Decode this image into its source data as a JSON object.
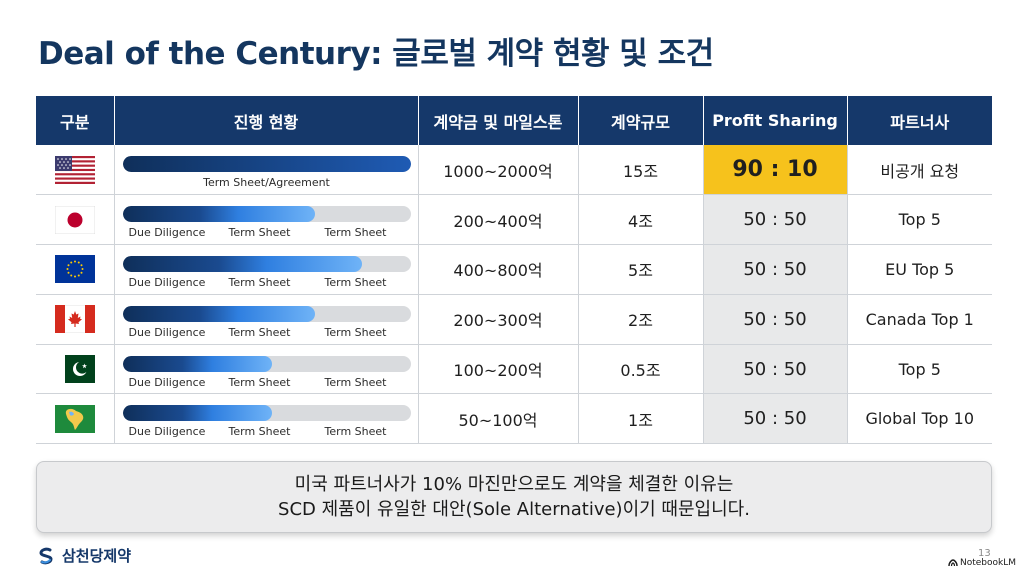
{
  "title": "Deal of the Century: 글로벌 계약 현황 및 조건",
  "table": {
    "headers": [
      "구분",
      "진행 현황",
      "계약금 및 마일스톤",
      "계약규모",
      "Profit Sharing",
      "파트너사"
    ],
    "rows": [
      {
        "flag": "usa-flag-icon",
        "stages": [
          "Term Sheet/Agreement"
        ],
        "progress": 1.0,
        "amount": "1000~2000억",
        "scale": "15조",
        "profit_sharing": "90 : 10",
        "partner": "비공개 요청",
        "highlight": true
      },
      {
        "flag": "japan-flag-icon",
        "stages": [
          "Due Diligence",
          "Term Sheet",
          "Term Sheet"
        ],
        "progress": 0.67,
        "amount": "200~400억",
        "scale": "4조",
        "profit_sharing": "50 : 50",
        "partner": "Top 5"
      },
      {
        "flag": "eu-flag-icon",
        "stages": [
          "Due Diligence",
          "Term Sheet",
          "Term Sheet"
        ],
        "progress": 0.83,
        "amount": "400~800억",
        "scale": "5조",
        "profit_sharing": "50 : 50",
        "partner": "EU Top 5"
      },
      {
        "flag": "canada-flag-icon",
        "stages": [
          "Due Diligence",
          "Term Sheet",
          "Term Sheet"
        ],
        "progress": 0.67,
        "amount": "200~300억",
        "scale": "2조",
        "profit_sharing": "50 : 50",
        "partner": "Canada Top 1"
      },
      {
        "flag": "pakistan-flag-icon",
        "stages": [
          "Due Diligence",
          "Term Sheet",
          "Term Sheet"
        ],
        "progress": 0.52,
        "amount": "100~200억",
        "scale": "0.5조",
        "profit_sharing": "50 : 50",
        "partner": "Top 5"
      },
      {
        "flag": "latin-america-map-icon",
        "stages": [
          "Due Diligence",
          "Term Sheet",
          "Term Sheet"
        ],
        "progress": 0.52,
        "amount": "50~100억",
        "scale": "1조",
        "profit_sharing": "50 : 50",
        "partner": "Global Top 10"
      }
    ]
  },
  "callout": {
    "line1": "미국 파트너사가 10% 마진만으로도 계약을 체결한 이유는",
    "line2": "SCD 제품이 유일한 대안(Sole Alternative)이기 때문입니다."
  },
  "footer": {
    "brand": "삼천당제약",
    "page_number": "13",
    "watermark": "NotebookLM"
  },
  "colors": {
    "title": "#14365f",
    "header_bg": "#15386a",
    "highlight": "#f6c21c",
    "profit_sharing_bg": "#e8e9ea"
  }
}
